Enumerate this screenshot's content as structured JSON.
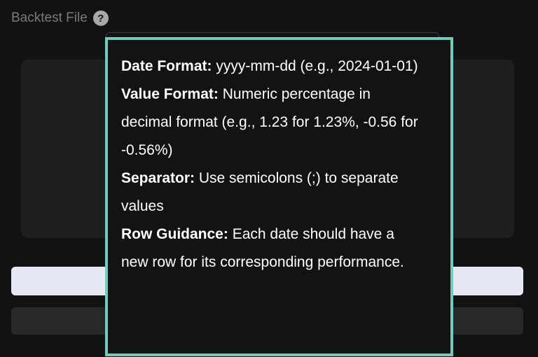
{
  "field": {
    "label": "Backtest File",
    "help_icon": "question-circle-icon"
  },
  "tooltip": {
    "border_color": "#72cbbb",
    "items": [
      {
        "term": "Date Format:",
        "text": "yyyy-mm-dd (e.g., 2024-01-01)"
      },
      {
        "term": "Value Format:",
        "text": "Numeric percentage in decimal format (e.g., 1.23 for 1.23%, -0.56 for -0.56%)"
      },
      {
        "term": "Separator:",
        "text": "Use semicolons (;) to separate values"
      },
      {
        "term": "Row Guidance:",
        "text": "Each date should have a new row for its corresponding performance."
      }
    ]
  }
}
